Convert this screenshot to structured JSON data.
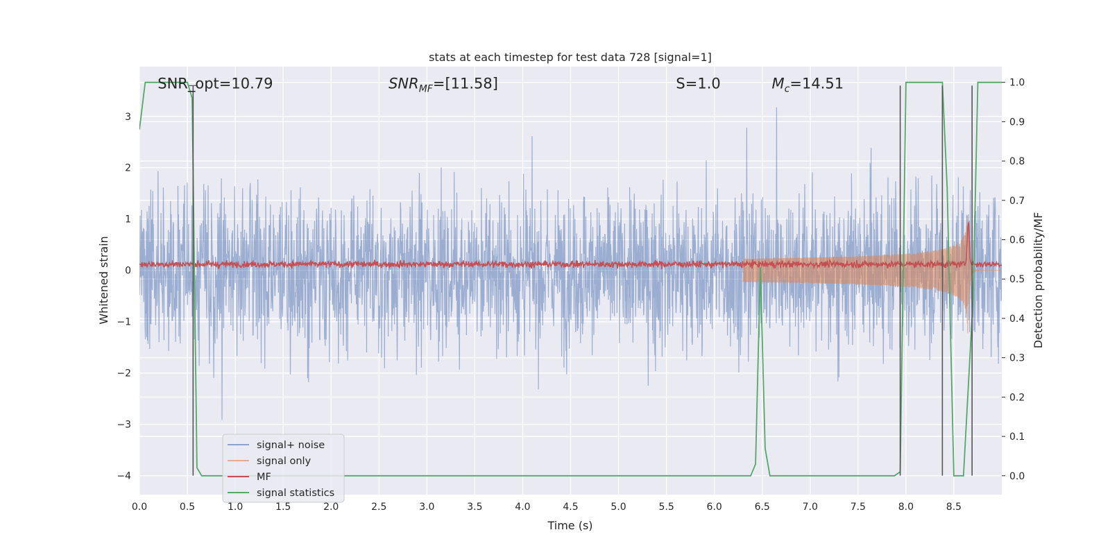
{
  "chart_data": {
    "type": "line",
    "title": "stats at each timestep for test data 728 [signal=1]",
    "xlabel": "Time (s)",
    "ylabel": "Whitened strain",
    "ylabel_right": "Detection probability/MF",
    "xlim": [
      0.0,
      9.0
    ],
    "ylim": [
      -4.37,
      3.97
    ],
    "ylim_right": [
      -0.048,
      1.04
    ],
    "x_ticks": [
      0.0,
      0.5,
      1.0,
      1.5,
      2.0,
      2.5,
      3.0,
      3.5,
      4.0,
      4.5,
      5.0,
      5.5,
      6.0,
      6.5,
      7.0,
      7.5,
      8.0,
      8.5
    ],
    "x_tick_labels": [
      "0.0",
      "0.5",
      "1.0",
      "1.5",
      "2.0",
      "2.5",
      "3.0",
      "3.5",
      "4.0",
      "4.5",
      "5.0",
      "5.5",
      "6.0",
      "6.5",
      "7.0",
      "7.5",
      "8.0",
      "8.5"
    ],
    "y_ticks": [
      3,
      2,
      1,
      0,
      -1,
      -2,
      -3,
      -4
    ],
    "y_tick_labels": [
      "3",
      "2",
      "1",
      "0",
      "−1",
      "−2",
      "−3",
      "−4"
    ],
    "y_ticks_right": [
      1.0,
      0.9,
      0.8,
      0.7,
      0.6,
      0.5,
      0.4,
      0.3,
      0.2,
      0.1,
      0.0
    ],
    "y_tick_labels_right": [
      "1.0",
      "0.9",
      "0.8",
      "0.7",
      "0.6",
      "0.5",
      "0.4",
      "0.3",
      "0.2",
      "0.1",
      "0.0"
    ],
    "grid": true,
    "legend_position": "lower-left",
    "annotations": [
      {
        "text": "SNR_opt=10.79",
        "x": 0.19,
        "y": 3.64
      },
      {
        "text": "SNR_MF=[11.58]",
        "x": 2.6,
        "y": 3.64
      },
      {
        "text": "S=1.0",
        "x": 5.6,
        "y": 3.64
      },
      {
        "text": "M_c=14.51",
        "x": 6.6,
        "y": 3.64
      }
    ],
    "vlines": [
      0.56,
      7.94,
      8.38,
      8.69
    ],
    "vline_range": [
      -4.0,
      3.6
    ],
    "series": [
      {
        "name": "signal+ noise",
        "color": "#4c72b0",
        "kind": "noise",
        "amplitude": 1.05,
        "envelope": [
          -3.3,
          3.6
        ]
      },
      {
        "name": "signal only",
        "color": "#dd8452",
        "kind": "chirp",
        "start": 6.3,
        "merger": 8.65,
        "peak": 1.6
      },
      {
        "name": "MF",
        "color": "#c44e52",
        "kind": "mf",
        "base": 0.12,
        "spike_x": 8.65,
        "spike_y": 1.0
      },
      {
        "name": "signal statistics",
        "color": "#55a868",
        "kind": "prob",
        "x": [
          0.0,
          0.06,
          0.5,
          0.55,
          0.6,
          0.65,
          0.7,
          6.38,
          6.43,
          6.48,
          6.53,
          6.58,
          6.65,
          7.88,
          7.94,
          8.0,
          8.38,
          8.43,
          8.5,
          8.6,
          8.7,
          8.75,
          9.0
        ],
        "y": [
          0.88,
          1.0,
          1.0,
          0.96,
          0.02,
          0.0,
          0.0,
          0.0,
          0.03,
          0.53,
          0.07,
          0.0,
          0.0,
          0.0,
          0.01,
          1.0,
          1.0,
          0.73,
          0.0,
          0.0,
          0.45,
          1.0,
          1.0
        ]
      }
    ]
  }
}
